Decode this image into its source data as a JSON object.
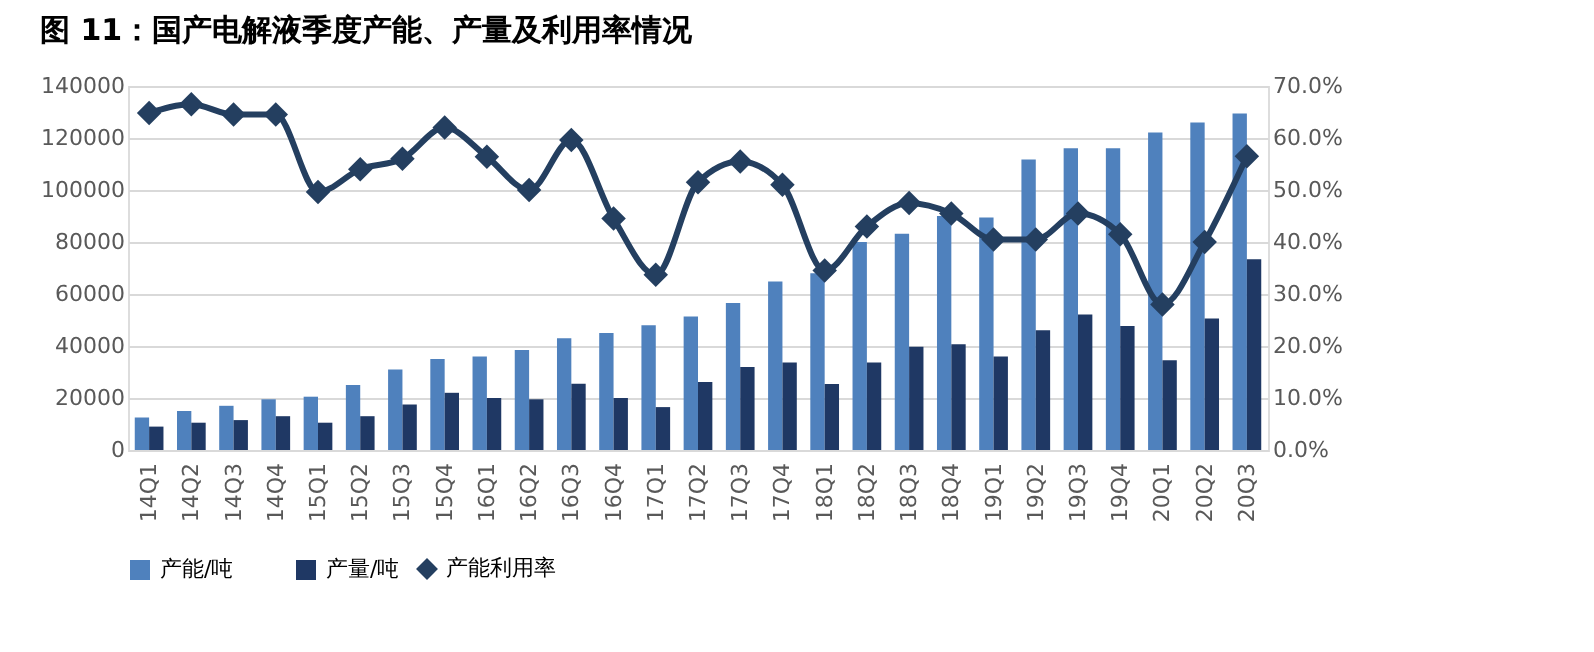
{
  "chart_data": {
    "type": "bar",
    "title": "图 11：国产电解液季度产能、产量及利用率情况",
    "categories": [
      "14Q1",
      "14Q2",
      "14Q3",
      "14Q4",
      "15Q1",
      "15Q2",
      "15Q3",
      "15Q4",
      "16Q1",
      "16Q2",
      "16Q3",
      "16Q4",
      "17Q1",
      "17Q2",
      "17Q3",
      "17Q4",
      "18Q1",
      "18Q2",
      "18Q3",
      "18Q4",
      "19Q1",
      "19Q2",
      "19Q3",
      "19Q4",
      "20Q1",
      "20Q2",
      "20Q3"
    ],
    "series": [
      {
        "name": "产能/吨",
        "type": "bar",
        "color": "#4f81bd",
        "values": [
          12500,
          15000,
          17000,
          19500,
          20500,
          25000,
          31000,
          35000,
          36000,
          38500,
          43000,
          45000,
          48000,
          51300,
          56500,
          64800,
          68000,
          80000,
          83200,
          90000,
          89400,
          111700,
          116100,
          116100,
          122100,
          126000,
          129400
        ]
      },
      {
        "name": "产量/吨",
        "type": "bar",
        "color": "#1f3864",
        "values": [
          9000,
          10500,
          11500,
          13000,
          10500,
          13000,
          17500,
          22000,
          20000,
          19500,
          25500,
          20000,
          16500,
          26200,
          31900,
          33700,
          25400,
          33700,
          39700,
          40700,
          36000,
          46100,
          52100,
          47700,
          34500,
          50600,
          73400
        ]
      },
      {
        "name": "产能利用率",
        "type": "line",
        "axis": "y2",
        "color": "#243f60",
        "values": [
          64.8,
          66.5,
          64.5,
          64.5,
          49.6,
          54,
          56,
          62,
          56.4,
          50,
          59.6,
          44.5,
          33.7,
          51.5,
          55.5,
          51,
          34.5,
          43,
          47.5,
          45.5,
          40.5,
          40.5,
          45.5,
          41.5,
          28,
          40,
          56.5
        ]
      }
    ],
    "ylim": [
      0,
      140000
    ],
    "yticks": [
      0,
      20000,
      40000,
      60000,
      80000,
      100000,
      120000,
      140000
    ],
    "y2lim": [
      0,
      70
    ],
    "y2ticks": [
      {
        "value": 0,
        "label": "0.0%"
      },
      {
        "value": 10,
        "label": "10.0%"
      },
      {
        "value": 20,
        "label": "20.0%"
      },
      {
        "value": 30,
        "label": "30.0%"
      },
      {
        "value": 40,
        "label": "40.0%"
      },
      {
        "value": 50,
        "label": "50.0%"
      },
      {
        "value": 60,
        "label": "60.0%"
      },
      {
        "value": 70,
        "label": "70.0%"
      }
    ],
    "grid": "y",
    "legend": "bottom",
    "marker": "diamond"
  }
}
